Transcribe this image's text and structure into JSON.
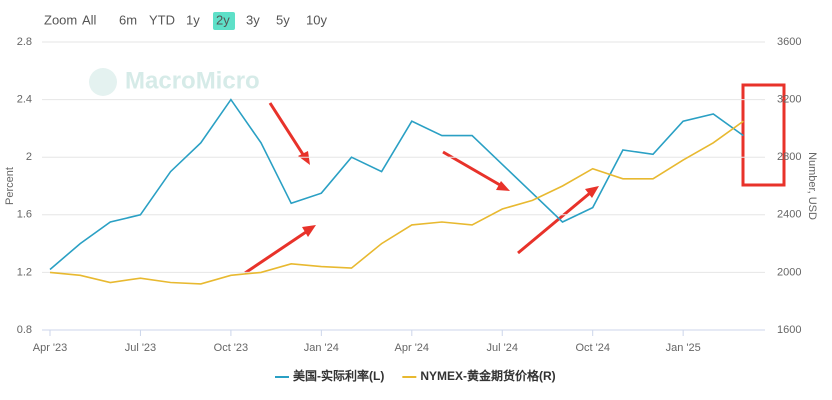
{
  "toolbar": {
    "label": "Zoom",
    "buttons": [
      "All",
      "6m",
      "YTD",
      "1y",
      "2y",
      "3y",
      "5y",
      "10y"
    ],
    "active": "2y"
  },
  "watermark": "MacroMicro",
  "chart_data": {
    "type": "line",
    "ylabel": "Percent",
    "y2label": "Number, USD",
    "x": [
      "2023-04",
      "2023-05",
      "2023-06",
      "2023-07",
      "2023-08",
      "2023-09",
      "2023-10",
      "2023-11",
      "2023-12",
      "2024-01",
      "2024-02",
      "2024-03",
      "2024-04",
      "2024-05",
      "2024-06",
      "2024-07",
      "2024-08",
      "2024-09",
      "2024-10",
      "2024-11",
      "2024-12",
      "2025-01",
      "2025-02",
      "2025-03"
    ],
    "xticks": [
      {
        "value": "2023-04",
        "label": "Apr '23"
      },
      {
        "value": "2023-07",
        "label": "Jul '23"
      },
      {
        "value": "2023-10",
        "label": "Oct '23"
      },
      {
        "value": "2024-01",
        "label": "Jan '24"
      },
      {
        "value": "2024-04",
        "label": "Apr '24"
      },
      {
        "value": "2024-07",
        "label": "Jul '24"
      },
      {
        "value": "2024-10",
        "label": "Oct '24"
      },
      {
        "value": "2025-01",
        "label": "Jan '25"
      }
    ],
    "ylim": [
      0.8,
      2.8
    ],
    "yticks": [
      0.8,
      1.2,
      1.6,
      2,
      2.4,
      2.8
    ],
    "y2lim": [
      1600,
      3600
    ],
    "y2ticks": [
      1600,
      2000,
      2400,
      2800,
      3200,
      3600
    ],
    "grid": true,
    "series": [
      {
        "name": "美国-实际利率(L)",
        "color": "#2aa0c4",
        "values": [
          1.22,
          1.4,
          1.55,
          1.6,
          1.9,
          2.1,
          2.4,
          2.1,
          1.68,
          1.75,
          2.0,
          1.9,
          2.25,
          2.15,
          2.15,
          1.95,
          1.75,
          1.55,
          1.65,
          2.05,
          2.02,
          2.25,
          2.3,
          2.15
        ]
      },
      {
        "name": "NYMEX-黄金期货价格(R)",
        "color": "#e8b930",
        "axis": "y2",
        "values": [
          2000,
          1980,
          1930,
          1960,
          1930,
          1920,
          1980,
          2000,
          2060,
          2040,
          2030,
          2200,
          2330,
          2350,
          2330,
          2440,
          2500,
          2600,
          2720,
          2650,
          2650,
          2780,
          2900,
          3050
        ]
      }
    ]
  }
}
